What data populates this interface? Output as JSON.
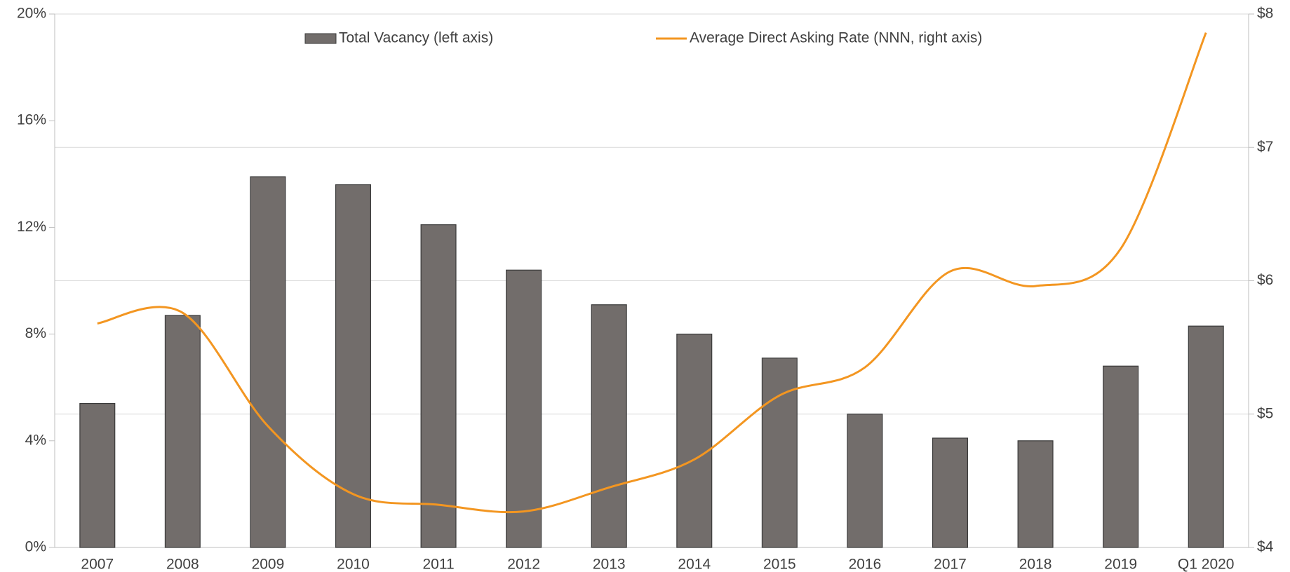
{
  "chart_data": {
    "type": "bar-line",
    "categories": [
      "2007",
      "2008",
      "2009",
      "2010",
      "2011",
      "2012",
      "2013",
      "2014",
      "2015",
      "2016",
      "2017",
      "2018",
      "2019",
      "Q1 2020"
    ],
    "series": [
      {
        "name": "Total Vacancy (left axis)",
        "type": "bar",
        "color": "#726d6b",
        "values": [
          5.4,
          8.7,
          13.9,
          13.6,
          12.1,
          10.4,
          9.1,
          8.0,
          7.1,
          5.0,
          4.1,
          4.0,
          6.8,
          8.3
        ]
      },
      {
        "name": "Average Direct Asking Rate (NNN, right axis)",
        "type": "line",
        "axis": "y2",
        "color": "#f39621",
        "values": [
          5.68,
          5.76,
          4.91,
          4.4,
          4.32,
          4.27,
          4.45,
          4.66,
          5.14,
          5.35,
          6.07,
          5.96,
          6.24,
          7.86
        ]
      }
    ],
    "ylim": [
      0,
      20
    ],
    "yticks": [
      {
        "value": 0,
        "label": "0%"
      },
      {
        "value": 4,
        "label": "4%"
      },
      {
        "value": 8,
        "label": "8%"
      },
      {
        "value": 12,
        "label": "12%"
      },
      {
        "value": 16,
        "label": "16%"
      },
      {
        "value": 20,
        "label": "20%"
      }
    ],
    "y2lim": [
      4,
      8
    ],
    "y2ticks": [
      {
        "value": 4,
        "label": "$4"
      },
      {
        "value": 5,
        "label": "$5"
      },
      {
        "value": 6,
        "label": "$6"
      },
      {
        "value": 7,
        "label": "$7"
      },
      {
        "value": 8,
        "label": "$8"
      }
    ],
    "grid": "y2",
    "legend": "top"
  }
}
